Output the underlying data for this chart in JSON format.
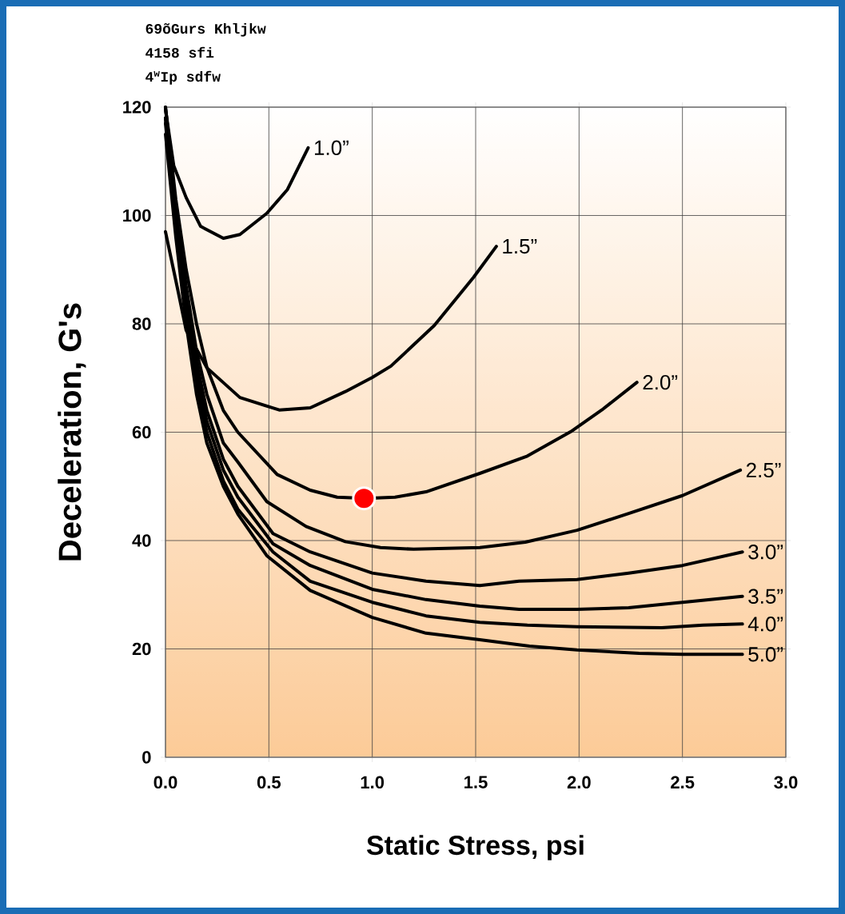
{
  "chart_data": {
    "type": "line",
    "xlabel": "Static Stress, psi",
    "ylabel": "Deceleration, G's",
    "annotations": [
      "69õGurs Khljkw",
      "4158 sfi",
      "4$^{w}$Ip sdfw"
    ],
    "xlim": [
      0,
      3
    ],
    "ylim": [
      0,
      120
    ],
    "xticks": [
      {
        "value": 0,
        "label": "0.0"
      },
      {
        "value": 0.5,
        "label": "0.5"
      },
      {
        "value": 1,
        "label": "1.0"
      },
      {
        "value": 1.5,
        "label": "1.5"
      },
      {
        "value": 2,
        "label": "2.0"
      },
      {
        "value": 2.5,
        "label": "2.5"
      },
      {
        "value": 3,
        "label": "3.0"
      }
    ],
    "yticks": [
      0,
      20,
      40,
      60,
      80,
      100,
      120
    ],
    "grid": true,
    "legend": false,
    "marker": "none",
    "line_style": "solid",
    "series": [
      {
        "name": "1.0”",
        "color": "#000000",
        "x": [
          0,
          0.04,
          0.1,
          0.17,
          0.28,
          0.36,
          0.49,
          0.59,
          0.69
        ],
        "values": [
          119.6,
          109.2,
          103.3,
          98,
          95.8,
          96.5,
          100.4,
          104.8,
          112.5
        ]
      },
      {
        "name": "1.5”",
        "color": "#000000",
        "x": [
          0,
          0.06,
          0.1,
          0.2,
          0.36,
          0.55,
          0.7,
          0.87,
          1.0,
          1.09,
          1.3,
          1.49,
          1.6
        ],
        "values": [
          97,
          86.2,
          78.8,
          71.9,
          66.4,
          64.1,
          64.5,
          67.5,
          70.1,
          72.2,
          79.7,
          88.6,
          94.3
        ]
      },
      {
        "name": "2.0”",
        "color": "#000000",
        "x": [
          0,
          0.05,
          0.1,
          0.15,
          0.2,
          0.28,
          0.35,
          0.54,
          0.7,
          0.83,
          0.97,
          1.11,
          1.26,
          1.52,
          1.75,
          1.96,
          2.11,
          2.28
        ],
        "values": [
          120,
          103,
          90,
          80,
          72,
          64,
          60,
          52.2,
          49.3,
          48,
          47.8,
          48,
          49,
          52.4,
          55.6,
          60.1,
          64.1,
          69.2
        ]
      },
      {
        "name": "2.5”",
        "color": "#000000",
        "x": [
          0,
          0.05,
          0.1,
          0.15,
          0.2,
          0.28,
          0.35,
          0.49,
          0.68,
          0.87,
          1.04,
          1.2,
          1.52,
          1.74,
          1.99,
          2.24,
          2.5,
          2.78
        ],
        "values": [
          120,
          101,
          87,
          75,
          67,
          58,
          54.5,
          47.2,
          42.6,
          39.8,
          38.7,
          38.4,
          38.7,
          39.7,
          41.9,
          45,
          48.3,
          53
        ]
      },
      {
        "name": "3.0”",
        "color": "#000000",
        "x": [
          0,
          0.05,
          0.1,
          0.15,
          0.2,
          0.28,
          0.35,
          0.52,
          0.7,
          1.0,
          1.26,
          1.52,
          1.71,
          1.99,
          2.24,
          2.5,
          2.79
        ],
        "values": [
          118,
          100,
          85,
          73,
          64,
          55,
          50,
          41.3,
          37.9,
          34,
          32.5,
          31.7,
          32.5,
          32.8,
          34,
          35.4,
          37.9
        ]
      },
      {
        "name": "3.5”",
        "color": "#000000",
        "x": [
          0,
          0.05,
          0.1,
          0.15,
          0.2,
          0.28,
          0.35,
          0.52,
          0.7,
          1.0,
          1.26,
          1.52,
          1.71,
          1.99,
          2.24,
          2.5,
          2.79
        ],
        "values": [
          118,
          99,
          83,
          71,
          62,
          53,
          48,
          39.4,
          35.4,
          31,
          29.1,
          27.9,
          27.3,
          27.3,
          27.6,
          28.6,
          29.7
        ]
      },
      {
        "name": "4.0”",
        "color": "#000000",
        "x": [
          0,
          0.05,
          0.1,
          0.15,
          0.2,
          0.28,
          0.35,
          0.52,
          0.7,
          1.0,
          1.26,
          1.52,
          1.75,
          1.99,
          2.4,
          2.6,
          2.79
        ],
        "values": [
          117,
          98,
          82,
          69,
          60,
          51,
          45.8,
          37.9,
          32.5,
          28.6,
          26.1,
          24.9,
          24.4,
          24.1,
          23.9,
          24.4,
          24.6
        ]
      },
      {
        "name": "5.0”",
        "color": "#000000",
        "x": [
          0,
          0.05,
          0.1,
          0.15,
          0.2,
          0.28,
          0.35,
          0.49,
          0.7,
          1.0,
          1.26,
          1.52,
          1.76,
          1.99,
          2.29,
          2.5,
          2.79
        ],
        "values": [
          115,
          96,
          80,
          67,
          58,
          50,
          44.9,
          37.2,
          30.8,
          25.8,
          22.9,
          21.7,
          20.5,
          19.8,
          19.2,
          19,
          19
        ]
      },
      {
        "type": "scatter",
        "marker": "circle",
        "color": "#ff0000",
        "x": [
          0.96
        ],
        "values": [
          47.8
        ]
      }
    ]
  }
}
